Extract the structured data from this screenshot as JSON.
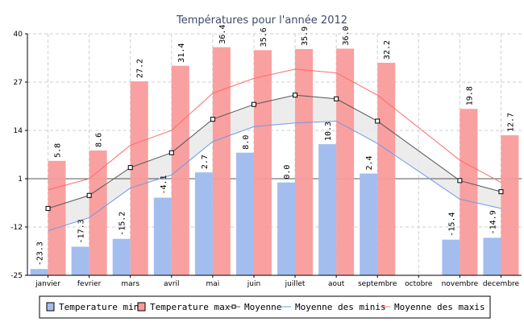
{
  "chart_data": {
    "type": "bar",
    "title": "Températures pour l'année 2012",
    "categories": [
      "janvier",
      "fevrier",
      "mars",
      "avril",
      "mai",
      "juin",
      "juillet",
      "aout",
      "septembre",
      "octobre",
      "novembre",
      "decembre"
    ],
    "ylim": [
      -25,
      40
    ],
    "yticks": [
      -25,
      -12,
      1,
      14,
      27,
      40
    ],
    "grid": true,
    "legend_position": "bottom",
    "series": [
      {
        "name": "Temperature min",
        "kind": "bar",
        "color": "#a4bdef",
        "values": [
          -23.3,
          -17.3,
          -15.2,
          -4.1,
          2.7,
          8.0,
          0.0,
          10.3,
          2.4,
          null,
          -15.4,
          -14.9
        ],
        "labels": [
          "-23.3",
          "-17.3",
          "-15.2",
          "-4.1",
          "2.7",
          "8.0",
          "0.0",
          "10.3",
          "2.4",
          "",
          "-15.4",
          "-14.9"
        ]
      },
      {
        "name": "Temperature max",
        "kind": "bar",
        "color": "#f99b9b",
        "values": [
          5.8,
          8.6,
          27.2,
          31.4,
          36.4,
          35.6,
          35.9,
          36.0,
          32.2,
          null,
          19.8,
          12.7
        ],
        "labels": [
          "5.8",
          "8.6",
          "27.2",
          "31.4",
          "36.4",
          "35.6",
          "35.9",
          "36.0",
          "32.2",
          "",
          "19.8",
          "12.7"
        ]
      },
      {
        "name": "Moyenne",
        "kind": "line",
        "color": "#555555",
        "marker": "square",
        "values": [
          -7.0,
          -3.5,
          4.0,
          8.0,
          17.0,
          21.0,
          23.5,
          22.5,
          16.5,
          null,
          0.5,
          -2.5
        ]
      },
      {
        "name": "Moyenne des minis",
        "kind": "line",
        "color": "#6f9ae6",
        "values": [
          -13.0,
          -9.5,
          -1.5,
          2.0,
          11.0,
          15.0,
          16.0,
          16.5,
          10.5,
          null,
          -4.5,
          -7.0
        ]
      },
      {
        "name": "Moyenne des maxis",
        "kind": "line",
        "color": "#ff6b6b",
        "values": [
          -2.0,
          1.0,
          10.0,
          14.0,
          24.0,
          28.0,
          30.5,
          29.5,
          23.5,
          null,
          6.0,
          0.0
        ]
      }
    ]
  }
}
